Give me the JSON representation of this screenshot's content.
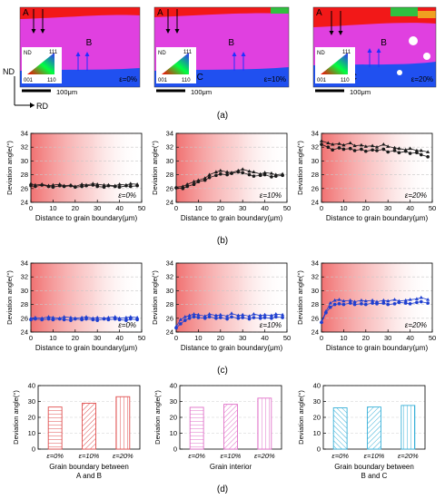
{
  "panel_labels": [
    "(a)",
    "(b)",
    "(c)",
    "(d)"
  ],
  "ebsd_maps": [
    {
      "strain_label": "ε=0%",
      "scale_label": "100μm",
      "regions": [
        "A",
        "B",
        "C"
      ],
      "key_labels": {
        "nd": "ND",
        "k111": "111",
        "k001": "001",
        "k110": "110"
      }
    },
    {
      "strain_label": "ε=10%",
      "scale_label": "100μm",
      "regions": [
        "A",
        "B",
        "C"
      ],
      "key_labels": {
        "nd": "ND",
        "k111": "111",
        "k001": "001",
        "k110": "110"
      }
    },
    {
      "strain_label": "ε=20%",
      "scale_label": "100μm",
      "regions": [
        "A",
        "B",
        "C"
      ],
      "key_labels": {
        "nd": "ND",
        "k111": "111",
        "k001": "001",
        "k110": "110"
      }
    }
  ],
  "axes_key": {
    "nd": "ND",
    "rd": "RD"
  },
  "colors": {
    "red_series": "#1a1a1a",
    "blue_series": "#1f3fd0",
    "ab_bar": "#e05050",
    "interior_bar": "#e070c8",
    "bc_bar": "#38b0d8",
    "gradient_red": "#f07070"
  },
  "chart_data": [
    {
      "type": "line",
      "row": "b",
      "strain": "ε=0%",
      "xlabel": "Distance to grain boundary(μm)",
      "ylabel": "Deviation angle(°)",
      "xlim": [
        0,
        50
      ],
      "ylim": [
        24,
        34
      ],
      "x_ticks": [
        "0",
        "10",
        "20",
        "30",
        "40",
        "50"
      ],
      "y_ticks": [
        "24",
        "26",
        "28",
        "30",
        "32",
        "34"
      ],
      "series": [
        {
          "marker": "triangle",
          "x": [
            0,
            2,
            5,
            8,
            10,
            13,
            15,
            18,
            20,
            23,
            25,
            28,
            30,
            33,
            35,
            38,
            40,
            43,
            45,
            48
          ],
          "y": [
            26.7,
            26.5,
            26.6,
            26.4,
            26.5,
            26.6,
            26.4,
            26.5,
            26.3,
            26.6,
            26.5,
            26.7,
            26.6,
            26.5,
            26.5,
            26.4,
            26.6,
            26.5,
            26.7,
            26.6
          ]
        },
        {
          "marker": "circle",
          "x": [
            0,
            2,
            5,
            8,
            10,
            13,
            15,
            18,
            20,
            23,
            25,
            28,
            30,
            33,
            35,
            38,
            40,
            43,
            45,
            48
          ],
          "y": [
            26.4,
            26.3,
            26.5,
            26.3,
            26.2,
            26.4,
            26.3,
            26.4,
            26.2,
            26.3,
            26.4,
            26.5,
            26.3,
            26.2,
            26.4,
            26.3,
            26.2,
            26.4,
            26.3,
            26.4
          ]
        }
      ]
    },
    {
      "type": "line",
      "row": "b",
      "strain": "ε=10%",
      "xlabel": "Distance to grain boundary(μm)",
      "ylabel": "Deviation angle(°)",
      "xlim": [
        0,
        50
      ],
      "ylim": [
        24,
        34
      ],
      "x_ticks": [
        "0",
        "10",
        "20",
        "30",
        "40",
        "50"
      ],
      "y_ticks": [
        "24",
        "26",
        "28",
        "30",
        "32",
        "34"
      ],
      "series": [
        {
          "marker": "triangle",
          "x": [
            0,
            3,
            5,
            8,
            10,
            13,
            15,
            18,
            20,
            23,
            25,
            28,
            30,
            33,
            35,
            38,
            40,
            43,
            45,
            48
          ],
          "y": [
            26.2,
            26.3,
            26.6,
            27.0,
            27.2,
            27.5,
            28.0,
            28.4,
            28.6,
            28.4,
            28.3,
            28.6,
            28.8,
            28.5,
            28.4,
            28.1,
            28.3,
            28.2,
            28.0,
            28.1
          ]
        },
        {
          "marker": "circle",
          "x": [
            0,
            3,
            5,
            8,
            10,
            13,
            15,
            18,
            20,
            23,
            25,
            28,
            30,
            33,
            35,
            38,
            40,
            43,
            45,
            48
          ],
          "y": [
            26.1,
            26.0,
            26.3,
            26.6,
            27.0,
            27.2,
            27.6,
            27.9,
            28.1,
            28.0,
            28.2,
            28.4,
            28.3,
            28.0,
            27.8,
            27.9,
            28.0,
            27.7,
            27.8,
            27.9
          ]
        }
      ]
    },
    {
      "type": "line",
      "row": "b",
      "strain": "ε=20%",
      "xlabel": "Distance to grain boundary(μm)",
      "ylabel": "Deviation angle(°)",
      "xlim": [
        0,
        50
      ],
      "ylim": [
        24,
        34
      ],
      "x_ticks": [
        "0",
        "10",
        "20",
        "30",
        "40",
        "50"
      ],
      "y_ticks": [
        "24",
        "26",
        "28",
        "30",
        "32",
        "34"
      ],
      "series": [
        {
          "marker": "triangle",
          "x": [
            0,
            3,
            5,
            8,
            10,
            13,
            15,
            18,
            20,
            23,
            25,
            28,
            30,
            33,
            35,
            38,
            40,
            43,
            45,
            48
          ],
          "y": [
            32.9,
            32.6,
            32.4,
            32.5,
            32.3,
            32.6,
            32.2,
            32.3,
            32.1,
            32.2,
            32.0,
            32.4,
            32.1,
            31.9,
            31.8,
            31.6,
            31.8,
            31.5,
            31.5,
            31.3
          ]
        },
        {
          "marker": "circle",
          "x": [
            0,
            3,
            5,
            8,
            10,
            13,
            15,
            18,
            20,
            23,
            25,
            28,
            30,
            33,
            35,
            38,
            40,
            43,
            45,
            48
          ],
          "y": [
            32.4,
            32.0,
            31.6,
            31.9,
            31.7,
            31.8,
            31.5,
            31.7,
            31.4,
            31.6,
            31.5,
            31.7,
            31.3,
            31.5,
            31.2,
            31.4,
            31.1,
            31.2,
            30.9,
            30.6
          ]
        }
      ]
    },
    {
      "type": "line",
      "row": "c",
      "strain": "ε=0%",
      "xlabel": "Distance to grain boundary(μm)",
      "ylabel": "Deviation angle(°)",
      "xlim": [
        0,
        50
      ],
      "ylim": [
        24,
        34
      ],
      "x_ticks": [
        "0",
        "10",
        "20",
        "30",
        "40",
        "50"
      ],
      "y_ticks": [
        "24",
        "26",
        "28",
        "30",
        "32",
        "34"
      ],
      "series": [
        {
          "marker": "triangle",
          "x": [
            0,
            2,
            5,
            8,
            10,
            13,
            15,
            18,
            20,
            23,
            25,
            28,
            30,
            33,
            35,
            38,
            40,
            43,
            45,
            48
          ],
          "y": [
            26.0,
            26.1,
            26.0,
            26.2,
            26.1,
            26.0,
            26.2,
            26.1,
            26.0,
            26.1,
            26.2,
            26.0,
            26.1,
            26.0,
            26.1,
            26.2,
            26.0,
            26.1,
            26.2,
            26.1
          ]
        },
        {
          "marker": "circle",
          "x": [
            0,
            2,
            5,
            8,
            10,
            13,
            15,
            18,
            20,
            23,
            25,
            28,
            30,
            33,
            35,
            38,
            40,
            43,
            45,
            48
          ],
          "y": [
            25.8,
            25.9,
            25.8,
            25.9,
            25.8,
            25.9,
            25.8,
            25.7,
            25.9,
            25.8,
            25.9,
            25.8,
            25.7,
            25.9,
            25.8,
            25.9,
            25.8,
            25.7,
            25.9,
            25.8
          ]
        }
      ]
    },
    {
      "type": "line",
      "row": "c",
      "strain": "ε=10%",
      "xlabel": "Distance to grain boundary(μm)",
      "ylabel": "Deviation angle(°)",
      "xlim": [
        0,
        50
      ],
      "ylim": [
        24,
        34
      ],
      "x_ticks": [
        "0",
        "10",
        "20",
        "30",
        "40",
        "50"
      ],
      "y_ticks": [
        "24",
        "26",
        "28",
        "30",
        "32",
        "34"
      ],
      "series": [
        {
          "marker": "triangle",
          "x": [
            0,
            2,
            4,
            6,
            8,
            10,
            13,
            15,
            18,
            20,
            23,
            25,
            28,
            30,
            33,
            35,
            38,
            40,
            43,
            45,
            48
          ],
          "y": [
            24.8,
            25.8,
            26.2,
            26.4,
            26.6,
            26.5,
            26.3,
            26.6,
            26.4,
            26.5,
            26.3,
            26.7,
            26.4,
            26.5,
            26.3,
            26.6,
            26.4,
            26.5,
            26.4,
            26.6,
            26.5
          ]
        },
        {
          "marker": "circle",
          "x": [
            0,
            2,
            4,
            6,
            8,
            10,
            13,
            15,
            18,
            20,
            23,
            25,
            28,
            30,
            33,
            35,
            38,
            40,
            43,
            45,
            48
          ],
          "y": [
            24.6,
            25.2,
            25.7,
            26.0,
            26.2,
            26.1,
            26.0,
            26.2,
            26.0,
            26.1,
            25.9,
            26.2,
            26.0,
            26.1,
            25.9,
            26.1,
            26.0,
            26.1,
            26.0,
            26.2,
            26.1
          ]
        }
      ]
    },
    {
      "type": "line",
      "row": "c",
      "strain": "ε=20%",
      "xlabel": "Distance to grain boundary(μm)",
      "ylabel": "Deviation angle(°)",
      "xlim": [
        0,
        50
      ],
      "ylim": [
        24,
        34
      ],
      "x_ticks": [
        "0",
        "10",
        "20",
        "30",
        "40",
        "50"
      ],
      "y_ticks": [
        "24",
        "26",
        "28",
        "30",
        "32",
        "34"
      ],
      "series": [
        {
          "marker": "triangle",
          "x": [
            0,
            2,
            4,
            6,
            8,
            10,
            13,
            15,
            18,
            20,
            23,
            25,
            28,
            30,
            33,
            35,
            38,
            40,
            43,
            45,
            48
          ],
          "y": [
            25.5,
            27.0,
            28.2,
            28.6,
            28.7,
            28.5,
            28.6,
            28.4,
            28.6,
            28.5,
            28.6,
            28.4,
            28.6,
            28.5,
            28.7,
            28.5,
            28.6,
            28.7,
            28.8,
            29.0,
            28.7
          ]
        },
        {
          "marker": "circle",
          "x": [
            0,
            2,
            4,
            6,
            8,
            10,
            13,
            15,
            18,
            20,
            23,
            25,
            28,
            30,
            33,
            35,
            38,
            40,
            43,
            45,
            48
          ],
          "y": [
            25.4,
            26.8,
            27.6,
            28.0,
            28.1,
            28.0,
            28.2,
            28.0,
            28.1,
            28.0,
            28.2,
            28.1,
            28.2,
            28.0,
            28.1,
            28.3,
            28.2,
            28.1,
            28.3,
            28.4,
            28.2
          ]
        }
      ]
    },
    {
      "type": "bar",
      "row": "d",
      "title": "Grain boundary between A and B",
      "ylabel": "Deviation angle(°)",
      "ylim": [
        0,
        40
      ],
      "y_ticks": [
        "0",
        "10",
        "20",
        "30",
        "40"
      ],
      "categories": [
        "ε=0%",
        "ε=10%",
        "ε=20%"
      ],
      "values": [
        26.5,
        28.9,
        33.0
      ],
      "color": "#e05050"
    },
    {
      "type": "bar",
      "row": "d",
      "title": "Grain interior",
      "ylabel": "Deviation angle(°)",
      "ylim": [
        0,
        40
      ],
      "y_ticks": [
        "0",
        "10",
        "20",
        "30",
        "40"
      ],
      "categories": [
        "ε=0%",
        "ε=10%",
        "ε=20%"
      ],
      "values": [
        26.3,
        28.2,
        32.1
      ],
      "color": "#e070c8"
    },
    {
      "type": "bar",
      "row": "d",
      "title": "Grain boundary between B and C",
      "ylabel": "Deviation angle(°)",
      "ylim": [
        0,
        40
      ],
      "y_ticks": [
        "0",
        "10",
        "20",
        "30",
        "40"
      ],
      "categories": [
        "ε=0%",
        "ε=10%",
        "ε=20%"
      ],
      "values": [
        26.0,
        26.5,
        27.5
      ],
      "color": "#38b0d8"
    }
  ]
}
